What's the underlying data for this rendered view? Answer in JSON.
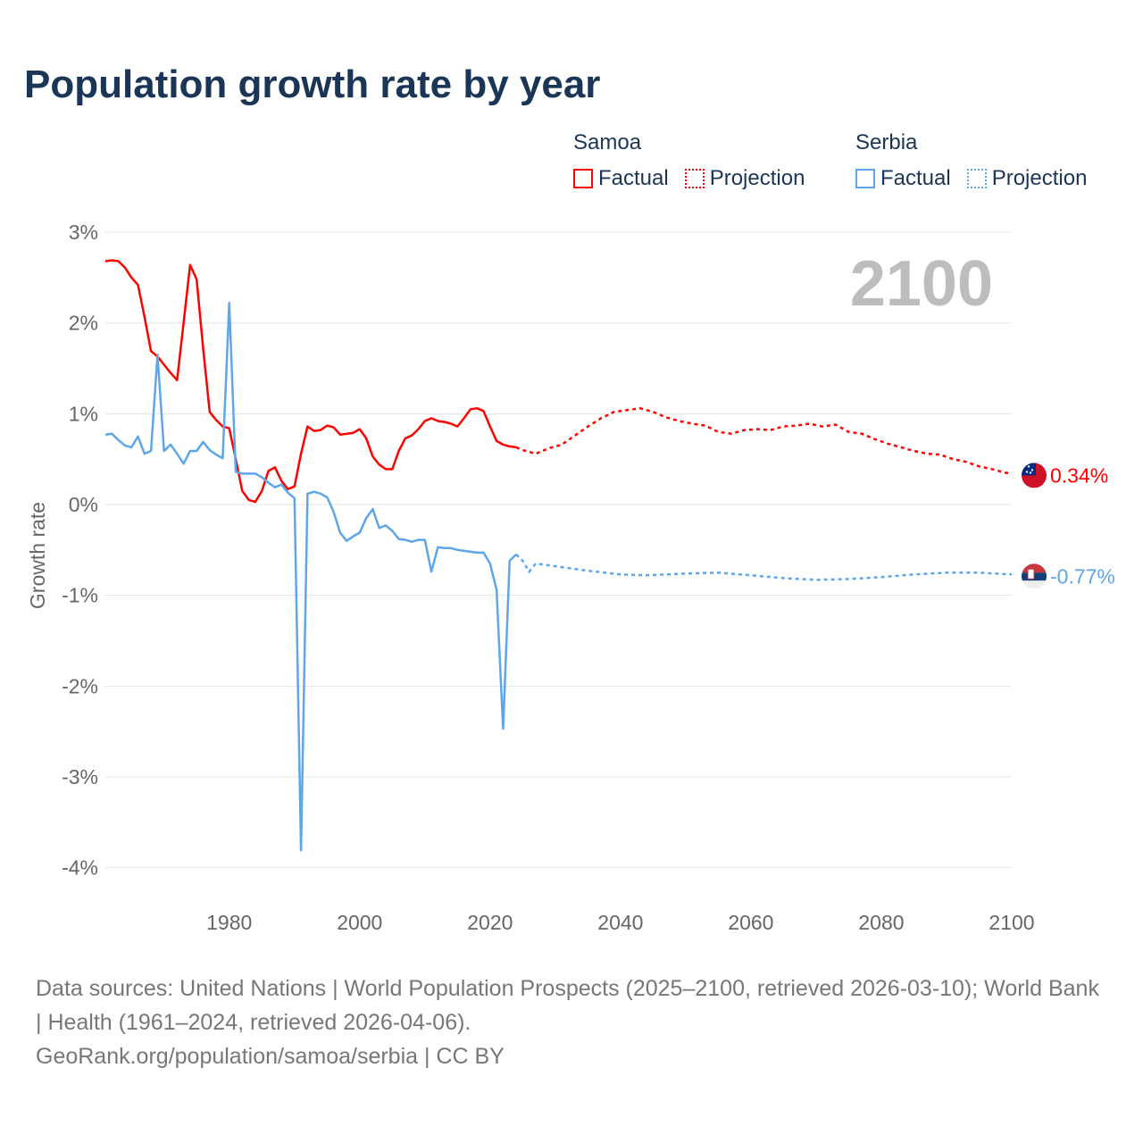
{
  "title": "Population growth rate by year",
  "legend": {
    "groups": [
      {
        "name": "Samoa",
        "factual": "Factual",
        "projection": "Projection",
        "color": "#ff0000"
      },
      {
        "name": "Serbia",
        "factual": "Factual",
        "projection": "Projection",
        "color": "#5ea6ea"
      }
    ]
  },
  "year_label": "2100",
  "footer": {
    "sources": "Data sources: United Nations | World Population Prospects (2025–2100, retrieved 2026-03-10); World Bank | Health (1961–2024, retrieved 2026-04-06).",
    "credit": "GeoRank.org/population/samoa/serbia | CC BY"
  },
  "chart_data": {
    "type": "line",
    "title": "Population growth rate by year",
    "xlabel": "",
    "ylabel": "Growth rate",
    "xlim": [
      1961,
      2100
    ],
    "ylim": [
      -4.2,
      3
    ],
    "xticks": [
      1980,
      2000,
      2020,
      2040,
      2060,
      2080,
      2100
    ],
    "xtick_labels": [
      "1980",
      "2000",
      "2020",
      "2040",
      "2060",
      "2080",
      "2100"
    ],
    "yticks": [
      3,
      2,
      1,
      0,
      -1,
      -2,
      -3,
      -4
    ],
    "ytick_labels": [
      "3%",
      "2%",
      "1%",
      "0%",
      "-1%",
      "-2%",
      "-3%",
      "-4%"
    ],
    "grid": true,
    "legend_position": "top-right",
    "series": [
      {
        "name": "Samoa",
        "color": "#ff0000",
        "end_label": "0.34%",
        "factual": {
          "x": [
            1961,
            1962,
            1963,
            1964,
            1965,
            1966,
            1967,
            1968,
            1969,
            1970,
            1971,
            1972,
            1973,
            1974,
            1975,
            1976,
            1977,
            1978,
            1979,
            1980,
            1981,
            1982,
            1983,
            1984,
            1985,
            1986,
            1987,
            1988,
            1989,
            1990,
            1991,
            1992,
            1993,
            1994,
            1995,
            1996,
            1997,
            1998,
            1999,
            2000,
            2001,
            2002,
            2003,
            2004,
            2005,
            2006,
            2007,
            2008,
            2009,
            2010,
            2011,
            2012,
            2013,
            2014,
            2015,
            2016,
            2017,
            2018,
            2019,
            2020,
            2021,
            2022,
            2023,
            2024
          ],
          "y": [
            2.68,
            2.69,
            2.68,
            2.61,
            2.5,
            2.42,
            2.07,
            1.69,
            1.63,
            1.54,
            1.45,
            1.37,
            2.0,
            2.64,
            2.48,
            1.72,
            1.02,
            0.93,
            0.86,
            0.84,
            0.5,
            0.15,
            0.05,
            0.03,
            0.15,
            0.37,
            0.41,
            0.26,
            0.17,
            0.2,
            0.56,
            0.86,
            0.81,
            0.82,
            0.87,
            0.85,
            0.77,
            0.78,
            0.79,
            0.83,
            0.73,
            0.53,
            0.44,
            0.39,
            0.39,
            0.59,
            0.73,
            0.76,
            0.83,
            0.92,
            0.95,
            0.92,
            0.91,
            0.89,
            0.86,
            0.95,
            1.05,
            1.06,
            1.03,
            0.86,
            0.7,
            0.66,
            0.64,
            0.63
          ]
        },
        "projection": {
          "x": [
            2024,
            2025,
            2027,
            2029,
            2031,
            2033,
            2035,
            2037,
            2039,
            2041,
            2043,
            2045,
            2047,
            2049,
            2051,
            2053,
            2055,
            2057,
            2059,
            2061,
            2063,
            2065,
            2067,
            2069,
            2071,
            2073,
            2075,
            2077,
            2079,
            2081,
            2083,
            2085,
            2087,
            2089,
            2091,
            2093,
            2095,
            2097,
            2099,
            2100
          ],
          "y": [
            0.63,
            0.6,
            0.56,
            0.62,
            0.66,
            0.76,
            0.86,
            0.95,
            1.02,
            1.04,
            1.06,
            1.02,
            0.96,
            0.92,
            0.89,
            0.87,
            0.8,
            0.78,
            0.82,
            0.83,
            0.82,
            0.86,
            0.87,
            0.89,
            0.86,
            0.88,
            0.8,
            0.78,
            0.72,
            0.67,
            0.63,
            0.59,
            0.56,
            0.55,
            0.5,
            0.47,
            0.42,
            0.39,
            0.35,
            0.34
          ]
        }
      },
      {
        "name": "Serbia",
        "color": "#5ea6ea",
        "end_label": "-0.77%",
        "factual": {
          "x": [
            1961,
            1962,
            1963,
            1964,
            1965,
            1966,
            1967,
            1968,
            1969,
            1970,
            1971,
            1972,
            1973,
            1974,
            1975,
            1976,
            1977,
            1978,
            1979,
            1980,
            1981,
            1982,
            1983,
            1984,
            1985,
            1986,
            1987,
            1988,
            1989,
            1990,
            1991,
            1992,
            1993,
            1994,
            1995,
            1996,
            1997,
            1998,
            1999,
            2000,
            2001,
            2002,
            2003,
            2004,
            2005,
            2006,
            2007,
            2008,
            2009,
            2010,
            2011,
            2012,
            2013,
            2014,
            2015,
            2016,
            2017,
            2018,
            2019,
            2020,
            2021,
            2022,
            2023,
            2024
          ],
          "y": [
            0.77,
            0.78,
            0.71,
            0.65,
            0.63,
            0.75,
            0.56,
            0.59,
            1.65,
            0.59,
            0.66,
            0.56,
            0.45,
            0.59,
            0.59,
            0.69,
            0.6,
            0.55,
            0.51,
            2.22,
            0.36,
            0.34,
            0.34,
            0.34,
            0.3,
            0.24,
            0.19,
            0.22,
            0.13,
            0.07,
            -3.81,
            0.12,
            0.14,
            0.12,
            0.08,
            -0.08,
            -0.31,
            -0.4,
            -0.35,
            -0.31,
            -0.15,
            -0.05,
            -0.26,
            -0.23,
            -0.29,
            -0.38,
            -0.39,
            -0.41,
            -0.39,
            -0.39,
            -0.74,
            -0.47,
            -0.48,
            -0.48,
            -0.5,
            -0.51,
            -0.52,
            -0.53,
            -0.53,
            -0.65,
            -0.94,
            -2.47,
            -0.62,
            -0.55
          ]
        },
        "projection": {
          "x": [
            2024,
            2025,
            2026,
            2027,
            2030,
            2035,
            2040,
            2044,
            2050,
            2055,
            2060,
            2065,
            2070,
            2075,
            2080,
            2085,
            2090,
            2095,
            2100
          ],
          "y": [
            -0.55,
            -0.62,
            -0.74,
            -0.65,
            -0.68,
            -0.73,
            -0.77,
            -0.78,
            -0.76,
            -0.75,
            -0.78,
            -0.81,
            -0.83,
            -0.82,
            -0.8,
            -0.77,
            -0.75,
            -0.75,
            -0.77
          ]
        }
      }
    ]
  }
}
